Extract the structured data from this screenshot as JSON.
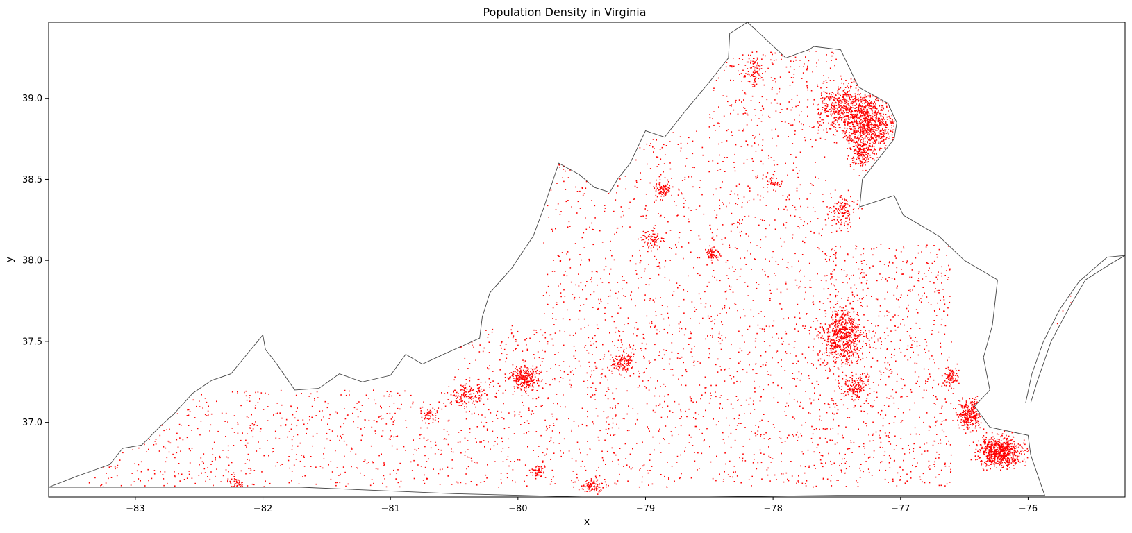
{
  "chart_data": {
    "type": "scatter",
    "title": "Population Density in Virginia",
    "xlabel": "x",
    "ylabel": "y",
    "xlim": [
      -83.68,
      -75.24
    ],
    "ylim": [
      36.54,
      39.47
    ],
    "grid": false,
    "legend": "none",
    "marker_color": "#ff0000",
    "outline_color": "#444444",
    "x_ticks": [
      -83,
      -82,
      -81,
      -80,
      -79,
      -78,
      -77,
      -76
    ],
    "x_tick_labels": [
      "−83",
      "−82",
      "−81",
      "−80",
      "−79",
      "−78",
      "−77",
      "−76"
    ],
    "y_ticks": [
      37.0,
      37.5,
      38.0,
      38.5,
      39.0
    ],
    "y_tick_labels": [
      "37.0",
      "37.5",
      "38.0",
      "38.5",
      "39.0"
    ],
    "boundary": [
      [
        -83.68,
        36.6
      ],
      [
        -83.45,
        36.67
      ],
      [
        -83.2,
        36.74
      ],
      [
        -83.1,
        36.84
      ],
      [
        -82.95,
        36.86
      ],
      [
        -82.8,
        36.98
      ],
      [
        -82.7,
        37.05
      ],
      [
        -82.55,
        37.18
      ],
      [
        -82.4,
        37.26
      ],
      [
        -82.25,
        37.3
      ],
      [
        -82.0,
        37.54
      ],
      [
        -81.98,
        37.45
      ],
      [
        -81.9,
        37.37
      ],
      [
        -81.75,
        37.2
      ],
      [
        -81.56,
        37.21
      ],
      [
        -81.4,
        37.3
      ],
      [
        -81.22,
        37.25
      ],
      [
        -81.0,
        37.29
      ],
      [
        -80.88,
        37.42
      ],
      [
        -80.75,
        37.36
      ],
      [
        -80.5,
        37.45
      ],
      [
        -80.3,
        37.52
      ],
      [
        -80.28,
        37.65
      ],
      [
        -80.22,
        37.8
      ],
      [
        -80.05,
        37.95
      ],
      [
        -79.88,
        38.15
      ],
      [
        -79.8,
        38.32
      ],
      [
        -79.68,
        38.6
      ],
      [
        -79.52,
        38.53
      ],
      [
        -79.4,
        38.45
      ],
      [
        -79.28,
        38.42
      ],
      [
        -79.22,
        38.5
      ],
      [
        -79.12,
        38.6
      ],
      [
        -79.0,
        38.8
      ],
      [
        -78.85,
        38.76
      ],
      [
        -78.68,
        38.93
      ],
      [
        -78.5,
        39.1
      ],
      [
        -78.35,
        39.25
      ],
      [
        -78.34,
        39.4
      ],
      [
        -78.2,
        39.47
      ],
      [
        -77.9,
        39.25
      ],
      [
        -77.72,
        39.3
      ],
      [
        -77.68,
        39.32
      ],
      [
        -77.47,
        39.3
      ],
      [
        -77.33,
        39.07
      ],
      [
        -77.1,
        38.97
      ],
      [
        -77.03,
        38.85
      ],
      [
        -77.05,
        38.75
      ],
      [
        -77.2,
        38.6
      ],
      [
        -77.3,
        38.5
      ],
      [
        -77.32,
        38.33
      ],
      [
        -77.05,
        38.4
      ],
      [
        -76.98,
        38.28
      ],
      [
        -76.7,
        38.15
      ],
      [
        -76.5,
        38.0
      ],
      [
        -76.24,
        37.88
      ],
      [
        -76.28,
        37.6
      ],
      [
        -76.35,
        37.4
      ],
      [
        -76.3,
        37.2
      ],
      [
        -76.42,
        37.1
      ],
      [
        -76.3,
        36.97
      ],
      [
        -76.0,
        36.92
      ],
      [
        -75.98,
        36.8
      ],
      [
        -75.87,
        36.55
      ],
      [
        -76.5,
        36.55
      ],
      [
        -77.5,
        36.55
      ],
      [
        -78.5,
        36.54
      ],
      [
        -79.5,
        36.54
      ],
      [
        -80.5,
        36.56
      ],
      [
        -81.7,
        36.6
      ],
      [
        -82.5,
        36.6
      ],
      [
        -83.1,
        36.6
      ],
      [
        -83.68,
        36.6
      ]
    ],
    "eastern_shore": [
      [
        -75.24,
        38.03
      ],
      [
        -75.38,
        38.02
      ],
      [
        -75.6,
        37.87
      ],
      [
        -75.75,
        37.7
      ],
      [
        -75.88,
        37.5
      ],
      [
        -75.97,
        37.3
      ],
      [
        -76.02,
        37.12
      ],
      [
        -75.98,
        37.12
      ],
      [
        -75.93,
        37.25
      ],
      [
        -75.82,
        37.5
      ],
      [
        -75.67,
        37.72
      ],
      [
        -75.55,
        37.88
      ],
      [
        -75.35,
        37.98
      ],
      [
        -75.24,
        38.03
      ]
    ],
    "density_clusters": [
      {
        "x": -77.25,
        "y": 38.85,
        "sx": 0.18,
        "sy": 0.15,
        "n": 900
      },
      {
        "x": -77.45,
        "y": 38.95,
        "sx": 0.15,
        "sy": 0.12,
        "n": 400
      },
      {
        "x": -77.3,
        "y": 38.65,
        "sx": 0.08,
        "sy": 0.07,
        "n": 150
      },
      {
        "x": -77.45,
        "y": 38.3,
        "sx": 0.08,
        "sy": 0.08,
        "n": 130
      },
      {
        "x": -78.15,
        "y": 39.17,
        "sx": 0.07,
        "sy": 0.08,
        "n": 90
      },
      {
        "x": -78.87,
        "y": 38.44,
        "sx": 0.06,
        "sy": 0.05,
        "n": 90
      },
      {
        "x": -78.48,
        "y": 38.04,
        "sx": 0.05,
        "sy": 0.04,
        "n": 60
      },
      {
        "x": -78.95,
        "y": 38.12,
        "sx": 0.08,
        "sy": 0.06,
        "n": 70
      },
      {
        "x": -77.45,
        "y": 37.53,
        "sx": 0.13,
        "sy": 0.14,
        "n": 600
      },
      {
        "x": -77.35,
        "y": 37.22,
        "sx": 0.07,
        "sy": 0.06,
        "n": 150
      },
      {
        "x": -79.95,
        "y": 37.28,
        "sx": 0.09,
        "sy": 0.06,
        "n": 250
      },
      {
        "x": -79.18,
        "y": 37.37,
        "sx": 0.07,
        "sy": 0.06,
        "n": 120
      },
      {
        "x": -80.4,
        "y": 37.17,
        "sx": 0.12,
        "sy": 0.06,
        "n": 120
      },
      {
        "x": -76.45,
        "y": 37.05,
        "sx": 0.08,
        "sy": 0.07,
        "n": 300
      },
      {
        "x": -76.22,
        "y": 36.82,
        "sx": 0.14,
        "sy": 0.07,
        "n": 700
      },
      {
        "x": -76.6,
        "y": 37.28,
        "sx": 0.05,
        "sy": 0.05,
        "n": 80
      },
      {
        "x": -79.42,
        "y": 36.6,
        "sx": 0.06,
        "sy": 0.03,
        "n": 90
      },
      {
        "x": -79.85,
        "y": 36.7,
        "sx": 0.05,
        "sy": 0.03,
        "n": 50
      },
      {
        "x": -82.2,
        "y": 36.62,
        "sx": 0.05,
        "sy": 0.03,
        "n": 40
      },
      {
        "x": -80.7,
        "y": 37.05,
        "sx": 0.06,
        "sy": 0.04,
        "n": 40
      },
      {
        "x": -78.0,
        "y": 38.48,
        "sx": 0.05,
        "sy": 0.04,
        "n": 30
      }
    ],
    "scatter_regions": [
      {
        "x0": -83.4,
        "x1": -80.5,
        "y0": 36.6,
        "y1": 37.2,
        "n": 700
      },
      {
        "x0": -80.5,
        "x1": -77.6,
        "y0": 36.6,
        "y1": 37.6,
        "n": 1200
      },
      {
        "x0": -79.8,
        "x1": -77.5,
        "y0": 37.6,
        "y1": 38.8,
        "n": 900
      },
      {
        "x0": -77.6,
        "x1": -76.6,
        "y0": 36.6,
        "y1": 38.1,
        "n": 800
      },
      {
        "x0": -78.5,
        "x1": -77.5,
        "y0": 38.8,
        "y1": 39.3,
        "n": 250
      },
      {
        "x0": -75.85,
        "x1": -75.35,
        "y0": 37.4,
        "y1": 37.95,
        "n": 80
      }
    ]
  }
}
